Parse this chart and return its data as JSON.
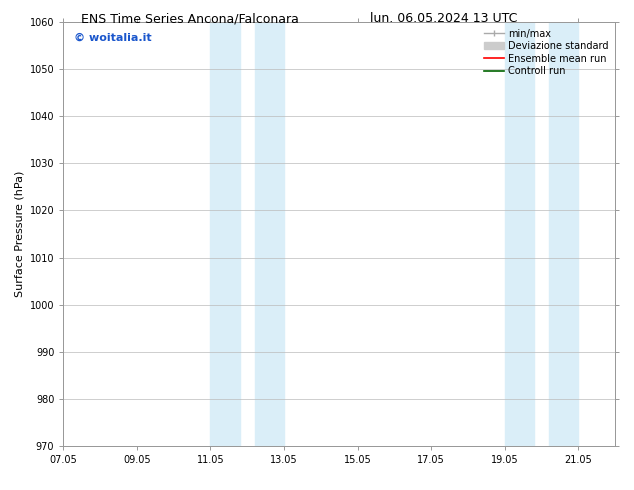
{
  "title_left": "ENS Time Series Ancona/Falconara",
  "title_right": "lun. 06.05.2024 13 UTC",
  "ylabel": "Surface Pressure (hPa)",
  "ylim": [
    970,
    1060
  ],
  "yticks": [
    970,
    980,
    990,
    1000,
    1010,
    1020,
    1030,
    1040,
    1050,
    1060
  ],
  "xtick_labels": [
    "07.05",
    "09.05",
    "11.05",
    "13.05",
    "15.05",
    "17.05",
    "19.05",
    "21.05"
  ],
  "xtick_positions": [
    0,
    2,
    4,
    6,
    8,
    10,
    12,
    14
  ],
  "xlim": [
    0,
    15
  ],
  "shaded_regions": [
    {
      "start": 4.0,
      "end": 4.8,
      "color": "#daeef8"
    },
    {
      "start": 5.2,
      "end": 6.0,
      "color": "#daeef8"
    },
    {
      "start": 12.0,
      "end": 12.8,
      "color": "#daeef8"
    },
    {
      "start": 13.2,
      "end": 14.0,
      "color": "#daeef8"
    }
  ],
  "watermark_text": "© woitalia.it",
  "watermark_color": "#1a56cc",
  "background_color": "#ffffff",
  "grid_color": "#bbbbbb",
  "title_fontsize": 9,
  "axis_label_fontsize": 8,
  "tick_fontsize": 7,
  "watermark_fontsize": 8,
  "legend_fontsize": 7
}
